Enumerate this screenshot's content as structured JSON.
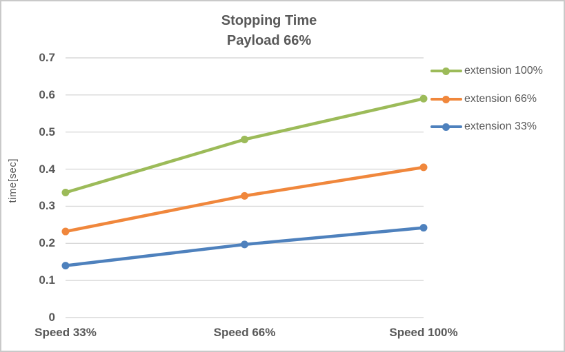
{
  "chart_data": {
    "type": "line",
    "title": "Stopping Time",
    "subtitle": "Payload 66%",
    "ylabel": "time[sec]",
    "xlabel": "",
    "categories": [
      "Speed 33%",
      "Speed 66%",
      "Speed 100%"
    ],
    "series": [
      {
        "name": "extension 100%",
        "color": "#9CBB59",
        "values": [
          0.337,
          0.48,
          0.59
        ]
      },
      {
        "name": "extension 66%",
        "color": "#F0873C",
        "values": [
          0.232,
          0.328,
          0.405
        ]
      },
      {
        "name": "extension 33%",
        "color": "#4E81BD",
        "values": [
          0.14,
          0.197,
          0.242
        ]
      }
    ],
    "ylim": [
      0,
      0.7
    ],
    "ytick_step": 0.1,
    "ytick_labels": [
      "0.7",
      "0.6",
      "0.5",
      "0.4",
      "0.3",
      "0.2",
      "0.1",
      "0"
    ],
    "grid": true,
    "legend_position": "right"
  },
  "colors": {
    "grid": "#D9D9D9",
    "axis_text": "#595959",
    "title_text": "#595959",
    "chart_border": "#C9C9C9",
    "background": "#FFFFFF"
  }
}
